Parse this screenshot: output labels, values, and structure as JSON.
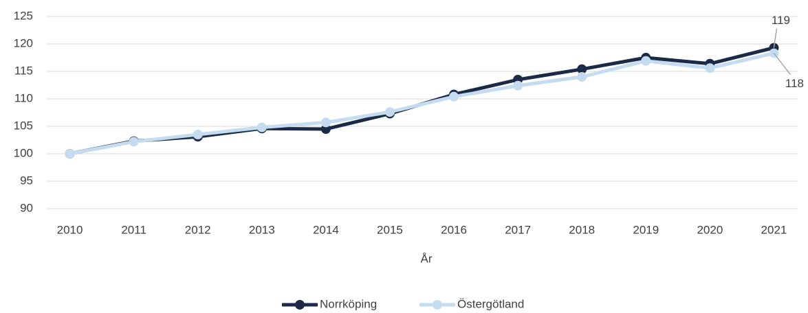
{
  "chart_data": {
    "type": "line",
    "x_label": "År",
    "categories": [
      "2010",
      "2011",
      "2012",
      "2013",
      "2014",
      "2015",
      "2016",
      "2017",
      "2018",
      "2019",
      "2020",
      "2021"
    ],
    "series": [
      {
        "name": "Norrköping",
        "color": "#1b2a47",
        "values": [
          100,
          102.3,
          103.1,
          104.6,
          104.5,
          107.3,
          110.8,
          113.5,
          115.4,
          117.5,
          116.4,
          119.3
        ],
        "value_labels": [
          null,
          null,
          null,
          null,
          null,
          null,
          null,
          null,
          null,
          null,
          null,
          "119"
        ]
      },
      {
        "name": "Östergötland",
        "color": "#c5dcf0",
        "values": [
          100,
          102.2,
          103.5,
          104.8,
          105.7,
          107.6,
          110.4,
          112.4,
          114,
          116.9,
          115.6,
          118.3
        ],
        "value_labels": [
          null,
          null,
          null,
          null,
          null,
          null,
          null,
          null,
          null,
          null,
          null,
          "118"
        ]
      }
    ],
    "ylim": [
      90,
      125
    ],
    "yticks": [
      90,
      95,
      100,
      105,
      110,
      115,
      120,
      125
    ],
    "grid": true,
    "legend": "bottom"
  }
}
